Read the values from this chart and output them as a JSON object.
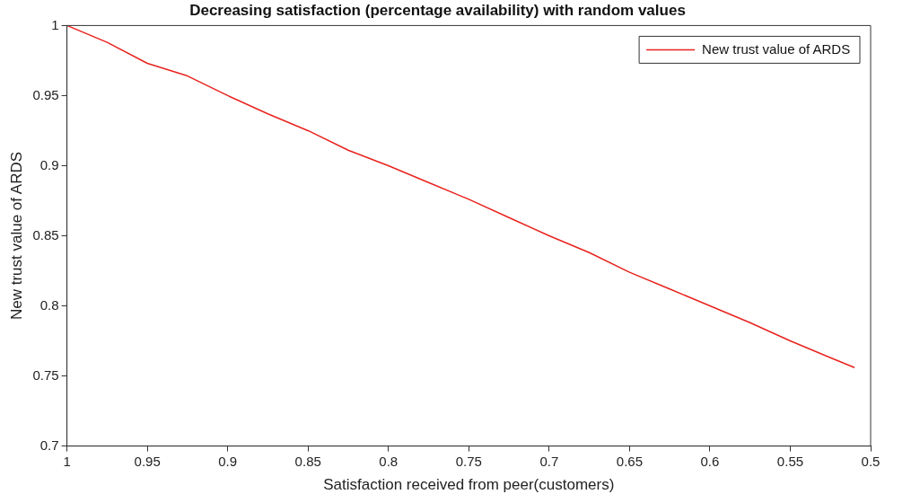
{
  "chart_data": {
    "type": "line",
    "title": "Decreasing satisfaction (percentage availability) with random values",
    "xlabel": "Satisfaction received from peer(customers)",
    "ylabel": "New trust value of ARDS",
    "series": [
      {
        "name": "New trust value of ARDS",
        "color": "#e8231f",
        "x": [
          1,
          0.975,
          0.95,
          0.925,
          0.9,
          0.875,
          0.85,
          0.825,
          0.8,
          0.775,
          0.75,
          0.725,
          0.7,
          0.675,
          0.65,
          0.625,
          0.6,
          0.575,
          0.55,
          0.525,
          0.51
        ],
        "values": [
          1,
          0.988,
          0.973,
          0.964,
          0.95,
          0.937,
          0.925,
          0.911,
          0.9,
          0.888,
          0.876,
          0.863,
          0.85,
          0.838,
          0.824,
          0.812,
          0.8,
          0.788,
          0.775,
          0.763,
          0.756
        ]
      }
    ],
    "xlim": [
      1,
      0.5
    ],
    "xticks": [
      1,
      0.95,
      0.9,
      0.85,
      0.8,
      0.75,
      0.7,
      0.65,
      0.6,
      0.55,
      0.5
    ],
    "ylim": [
      0.7,
      1
    ],
    "yticks": [
      0.7,
      0.75,
      0.8,
      0.85,
      0.9,
      0.95,
      1
    ],
    "grid": false,
    "legend": "top right",
    "marker": "none",
    "line_style": "solid"
  }
}
